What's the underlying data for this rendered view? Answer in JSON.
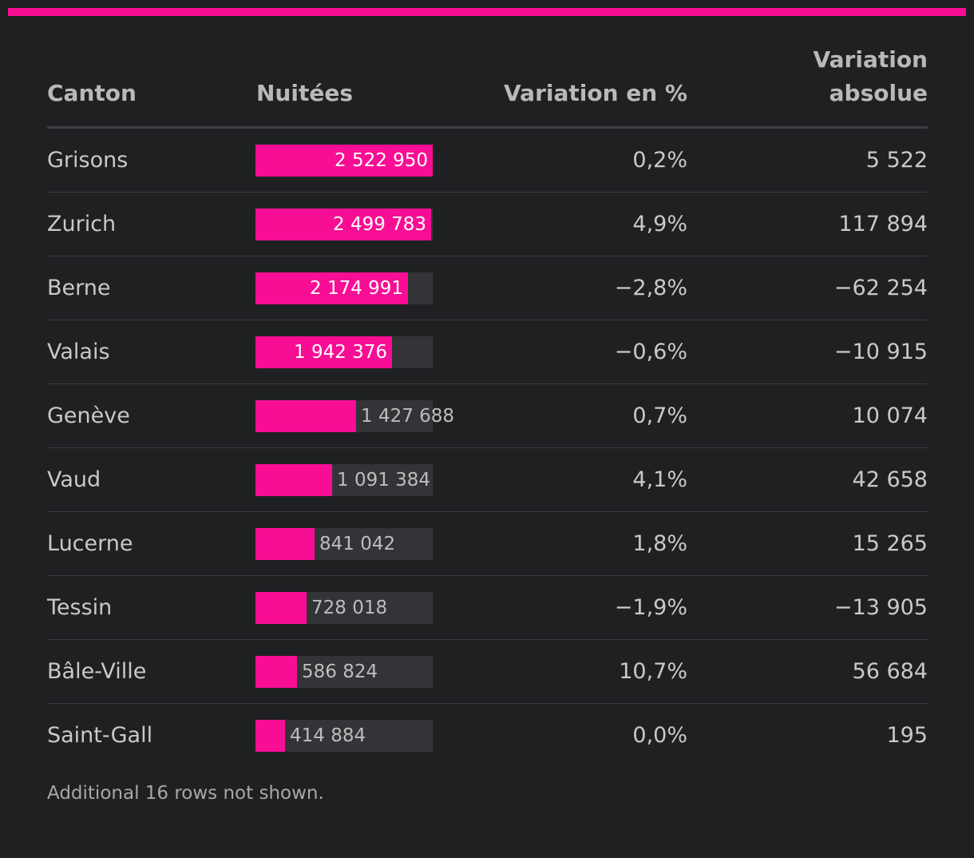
{
  "colors": {
    "accent": "#f80e94",
    "background": "#1f2022",
    "bar_track": "#333437"
  },
  "chart_data": {
    "type": "table",
    "columns": [
      "Canton",
      "Nuitées",
      "Variation en %",
      "Variation absolue"
    ],
    "bar_column": "Nuitées",
    "bar_max": 2522950,
    "rows": [
      {
        "canton": "Grisons",
        "nuitees": 2522950,
        "nuitees_label": "2 522 950",
        "var_pct": "0,2%",
        "var_abs": "5 522"
      },
      {
        "canton": "Zurich",
        "nuitees": 2499783,
        "nuitees_label": "2 499 783",
        "var_pct": "4,9%",
        "var_abs": "117 894"
      },
      {
        "canton": "Berne",
        "nuitees": 2174991,
        "nuitees_label": "2 174 991",
        "var_pct": "−2,8%",
        "var_abs": "−62 254"
      },
      {
        "canton": "Valais",
        "nuitees": 1942376,
        "nuitees_label": "1 942 376",
        "var_pct": "−0,6%",
        "var_abs": "−10 915"
      },
      {
        "canton": "Genève",
        "nuitees": 1427688,
        "nuitees_label": "1 427 688",
        "var_pct": "0,7%",
        "var_abs": "10 074"
      },
      {
        "canton": "Vaud",
        "nuitees": 1091384,
        "nuitees_label": "1 091 384",
        "var_pct": "4,1%",
        "var_abs": "42 658"
      },
      {
        "canton": "Lucerne",
        "nuitees": 841042,
        "nuitees_label": "841 042",
        "var_pct": "1,8%",
        "var_abs": "15 265"
      },
      {
        "canton": "Tessin",
        "nuitees": 728018,
        "nuitees_label": "728 018",
        "var_pct": "−1,9%",
        "var_abs": "−13 905"
      },
      {
        "canton": "Bâle-Ville",
        "nuitees": 586824,
        "nuitees_label": "586 824",
        "var_pct": "10,7%",
        "var_abs": "56 684"
      },
      {
        "canton": "Saint-Gall",
        "nuitees": 414884,
        "nuitees_label": "414 884",
        "var_pct": "0,0%",
        "var_abs": "195"
      }
    ],
    "footnote": "Additional 16 rows not shown."
  }
}
